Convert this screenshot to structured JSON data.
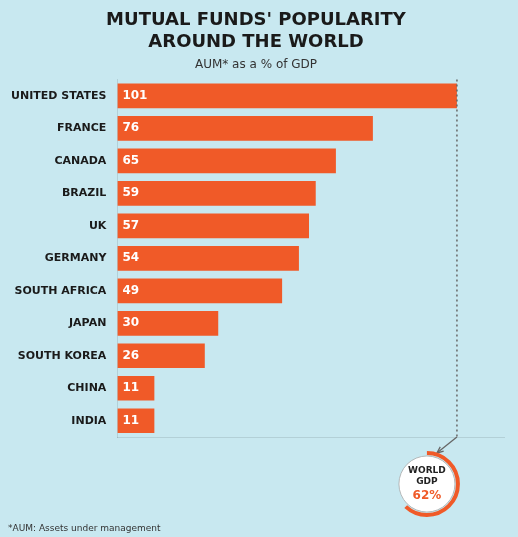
{
  "chart_data": {
    "type": "bar",
    "orientation": "horizontal",
    "title": [
      "MUTUAL FUNDS' POPULARITY",
      "AROUND THE WORLD"
    ],
    "subtitle": "AUM* as a % of GDP",
    "footnote": "*AUM: Assets under management",
    "categories": [
      "UNITED STATES",
      "FRANCE",
      "CANADA",
      "BRAZIL",
      "UK",
      "GERMANY",
      "SOUTH AFRICA",
      "JAPAN",
      "SOUTH KOREA",
      "CHINA",
      "INDIA"
    ],
    "values": [
      101,
      76,
      65,
      59,
      57,
      54,
      49,
      30,
      26,
      11,
      11
    ],
    "color": "#F05A28",
    "xlim": [
      0,
      115
    ],
    "reference_line": 101,
    "world_gdp": {
      "label": [
        "WORLD",
        "GDP"
      ],
      "value": 62,
      "value_label": "62%"
    },
    "data_labels": true,
    "tick_labels": "y",
    "grid": false
  }
}
